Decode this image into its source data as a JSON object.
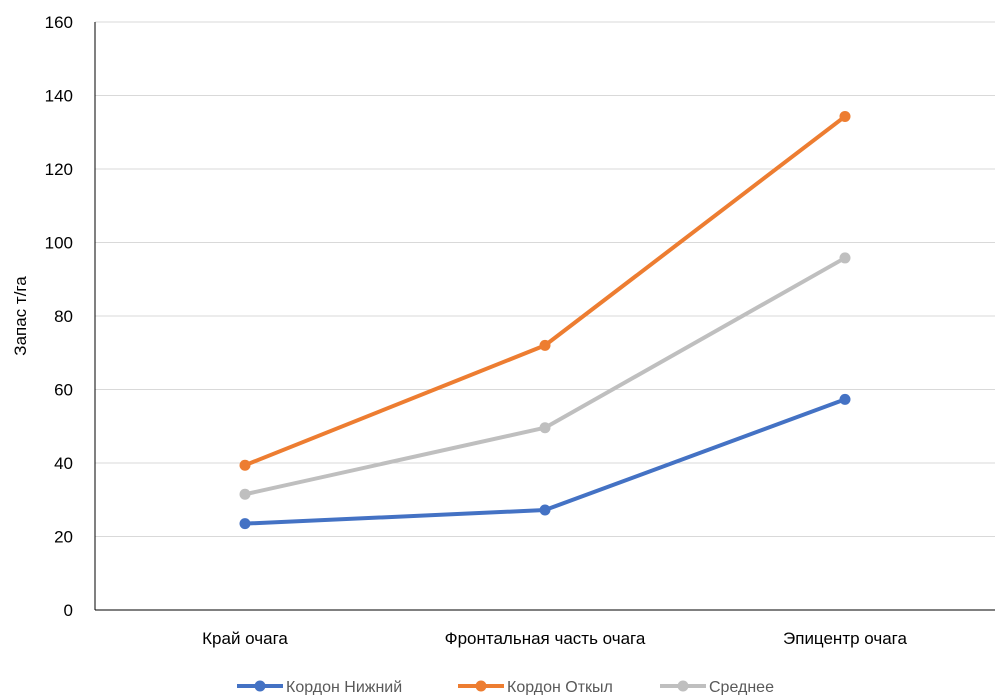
{
  "chart_data": {
    "type": "line",
    "categories": [
      "Край очага",
      "Фронтальная часть очага",
      "Эпицентр очага"
    ],
    "series": [
      {
        "name": "Кордон Нижний",
        "values": [
          23.5,
          27.2,
          57.3
        ],
        "color": "#4472C4"
      },
      {
        "name": "Кордон Откыл",
        "values": [
          39.4,
          72.0,
          134.3
        ],
        "color": "#ED7D31"
      },
      {
        "name": "Среднее",
        "values": [
          31.5,
          49.6,
          95.8
        ],
        "color": "#BFBFBF"
      }
    ],
    "title": "",
    "xlabel": "",
    "ylabel": "Запас т/га",
    "ylim": [
      0,
      160
    ],
    "yticks": [
      0,
      20,
      40,
      60,
      80,
      100,
      120,
      140,
      160
    ],
    "grid": true,
    "legend_position": "bottom"
  }
}
